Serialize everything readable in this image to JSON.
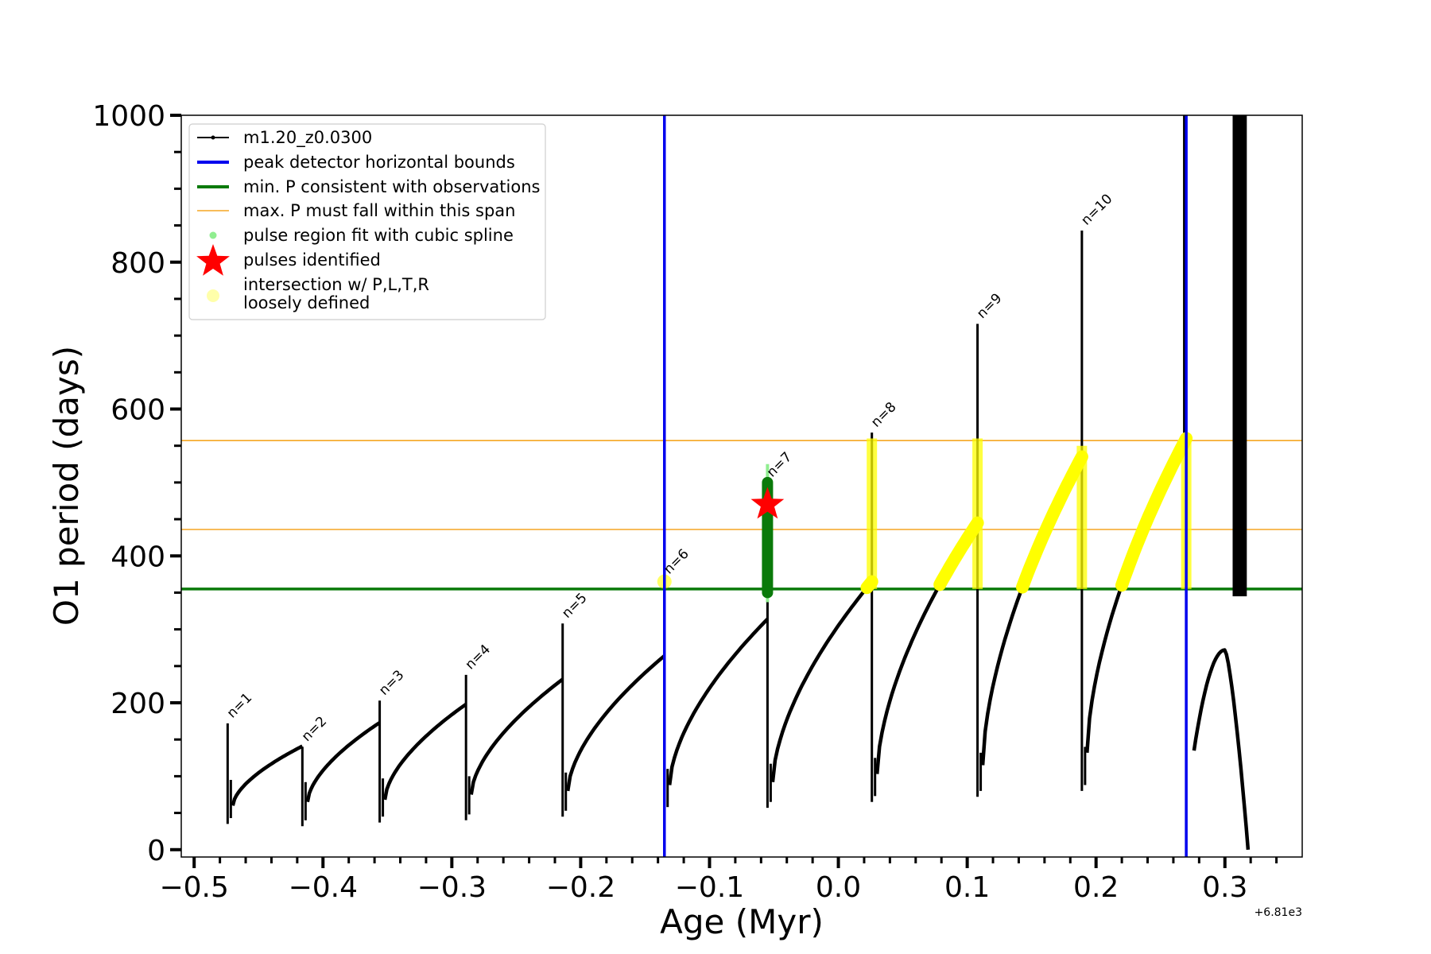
{
  "chart_data": {
    "type": "line",
    "xlabel": "Age (Myr)",
    "ylabel": "O1 period (days)",
    "x_offset_label": "+6.81e3",
    "xlim": [
      -0.51,
      0.36
    ],
    "ylim": [
      -10,
      1000
    ],
    "x_major_ticks": [
      -0.5,
      -0.4,
      -0.3,
      -0.2,
      -0.1,
      0.0,
      0.1,
      0.2,
      0.3
    ],
    "x_tick_labels": [
      "−0.5",
      "−0.4",
      "−0.3",
      "−0.2",
      "−0.1",
      "0.0",
      "0.1",
      "0.2",
      "0.3"
    ],
    "x_minor_step": 0.02,
    "y_major_ticks": [
      0,
      200,
      400,
      600,
      800,
      1000
    ],
    "y_tick_labels": [
      "0",
      "200",
      "400",
      "600",
      "800",
      "1000"
    ],
    "y_minor_step": 50,
    "grid": false,
    "legend_position": "top-left",
    "legend": [
      {
        "label": "m1.20_z0.0300",
        "marker": "line-dot",
        "color": "#000000"
      },
      {
        "label": "peak detector horizontal bounds",
        "marker": "line",
        "color": "#0000ee"
      },
      {
        "label": "min. P consistent with observations",
        "marker": "line",
        "color": "#0a7a0a"
      },
      {
        "label": "max. P must fall within this span",
        "marker": "thin-line",
        "color": "#f5a623"
      },
      {
        "label": "pulse region fit with cubic spline",
        "marker": "dot",
        "color": "#90ee90"
      },
      {
        "label": "pulses identified",
        "marker": "star",
        "color": "#ff0000"
      },
      {
        "label": "intersection w/ P,L,T,R",
        "label2": "loosely defined",
        "marker": "circle",
        "color": "#ffffaa"
      }
    ],
    "vertical_lines": {
      "color": "#0000ee",
      "x": [
        -0.135,
        0.27
      ]
    },
    "green_line": {
      "y": 355,
      "color": "#0a7a0a"
    },
    "orange_lines": {
      "y": [
        436,
        557
      ],
      "color": "#f5a623"
    },
    "pulses": [
      {
        "label": "n=1",
        "x": -0.474,
        "peak": 172,
        "min": 35
      },
      {
        "label": "n=2",
        "x": -0.416,
        "peak": 140,
        "min": 32
      },
      {
        "label": "n=3",
        "x": -0.356,
        "peak": 203,
        "min": 37
      },
      {
        "label": "n=4",
        "x": -0.289,
        "peak": 238,
        "min": 40
      },
      {
        "label": "n=5",
        "x": -0.214,
        "peak": 308,
        "min": 45
      },
      {
        "label": "n=6",
        "x": -0.135,
        "peak": 368,
        "min": 50
      },
      {
        "label": "n=7",
        "x": -0.055,
        "peak": 500,
        "min": 57
      },
      {
        "label": "n=8",
        "x": 0.026,
        "peak": 568,
        "min": 65
      },
      {
        "label": "n=9",
        "x": 0.108,
        "peak": 716,
        "min": 72
      },
      {
        "label": "n=10",
        "x": 0.189,
        "peak": 843,
        "min": 80
      }
    ],
    "interpulse_arcs": [
      {
        "x0": -0.474,
        "x1": -0.416,
        "start": 60,
        "end": 141
      },
      {
        "x0": -0.416,
        "x1": -0.356,
        "start": 65,
        "end": 173
      },
      {
        "x0": -0.356,
        "x1": -0.289,
        "start": 68,
        "end": 198
      },
      {
        "x0": -0.289,
        "x1": -0.214,
        "start": 75,
        "end": 232
      },
      {
        "x0": -0.214,
        "x1": -0.135,
        "start": 80,
        "end": 264
      },
      {
        "x0": -0.135,
        "x1": -0.055,
        "start": 88,
        "end": 314
      },
      {
        "x0": -0.055,
        "x1": 0.026,
        "start": 92,
        "end": 365
      },
      {
        "x0": 0.026,
        "x1": 0.108,
        "start": 103,
        "end": 445
      },
      {
        "x0": 0.108,
        "x1": 0.189,
        "start": 115,
        "end": 535
      },
      {
        "x0": 0.189,
        "x1": 0.27,
        "start": 132,
        "end": 560
      }
    ],
    "final_segment": {
      "x0": 0.27,
      "min": 135,
      "peak_x": 0.3,
      "peak": 272,
      "end_x": 0.318
    },
    "black_band": {
      "x0": 0.306,
      "x1": 0.317,
      "y0": 345,
      "y1": 1000
    },
    "black_strip": {
      "x0": 0.2675,
      "x1": 0.2695,
      "y0": 560,
      "y1": 1000
    },
    "star": {
      "x": -0.055,
      "y": 470,
      "color": "#ff0000"
    },
    "green_cluster": {
      "x": -0.055,
      "y0": 350,
      "y1": 500,
      "color": "#0a7a0a"
    },
    "yellow_color": "#ffff00",
    "yellow_spot": {
      "x": -0.135,
      "y": 365
    },
    "yellow_vertical_strips": [
      {
        "x": 0.026,
        "y0": 355,
        "y1": 560
      },
      {
        "x": 0.108,
        "y0": 355,
        "y1": 560
      },
      {
        "x": 0.189,
        "y0": 355,
        "y1": 550
      },
      {
        "x": 0.27,
        "y0": 355,
        "y1": 560
      }
    ]
  }
}
